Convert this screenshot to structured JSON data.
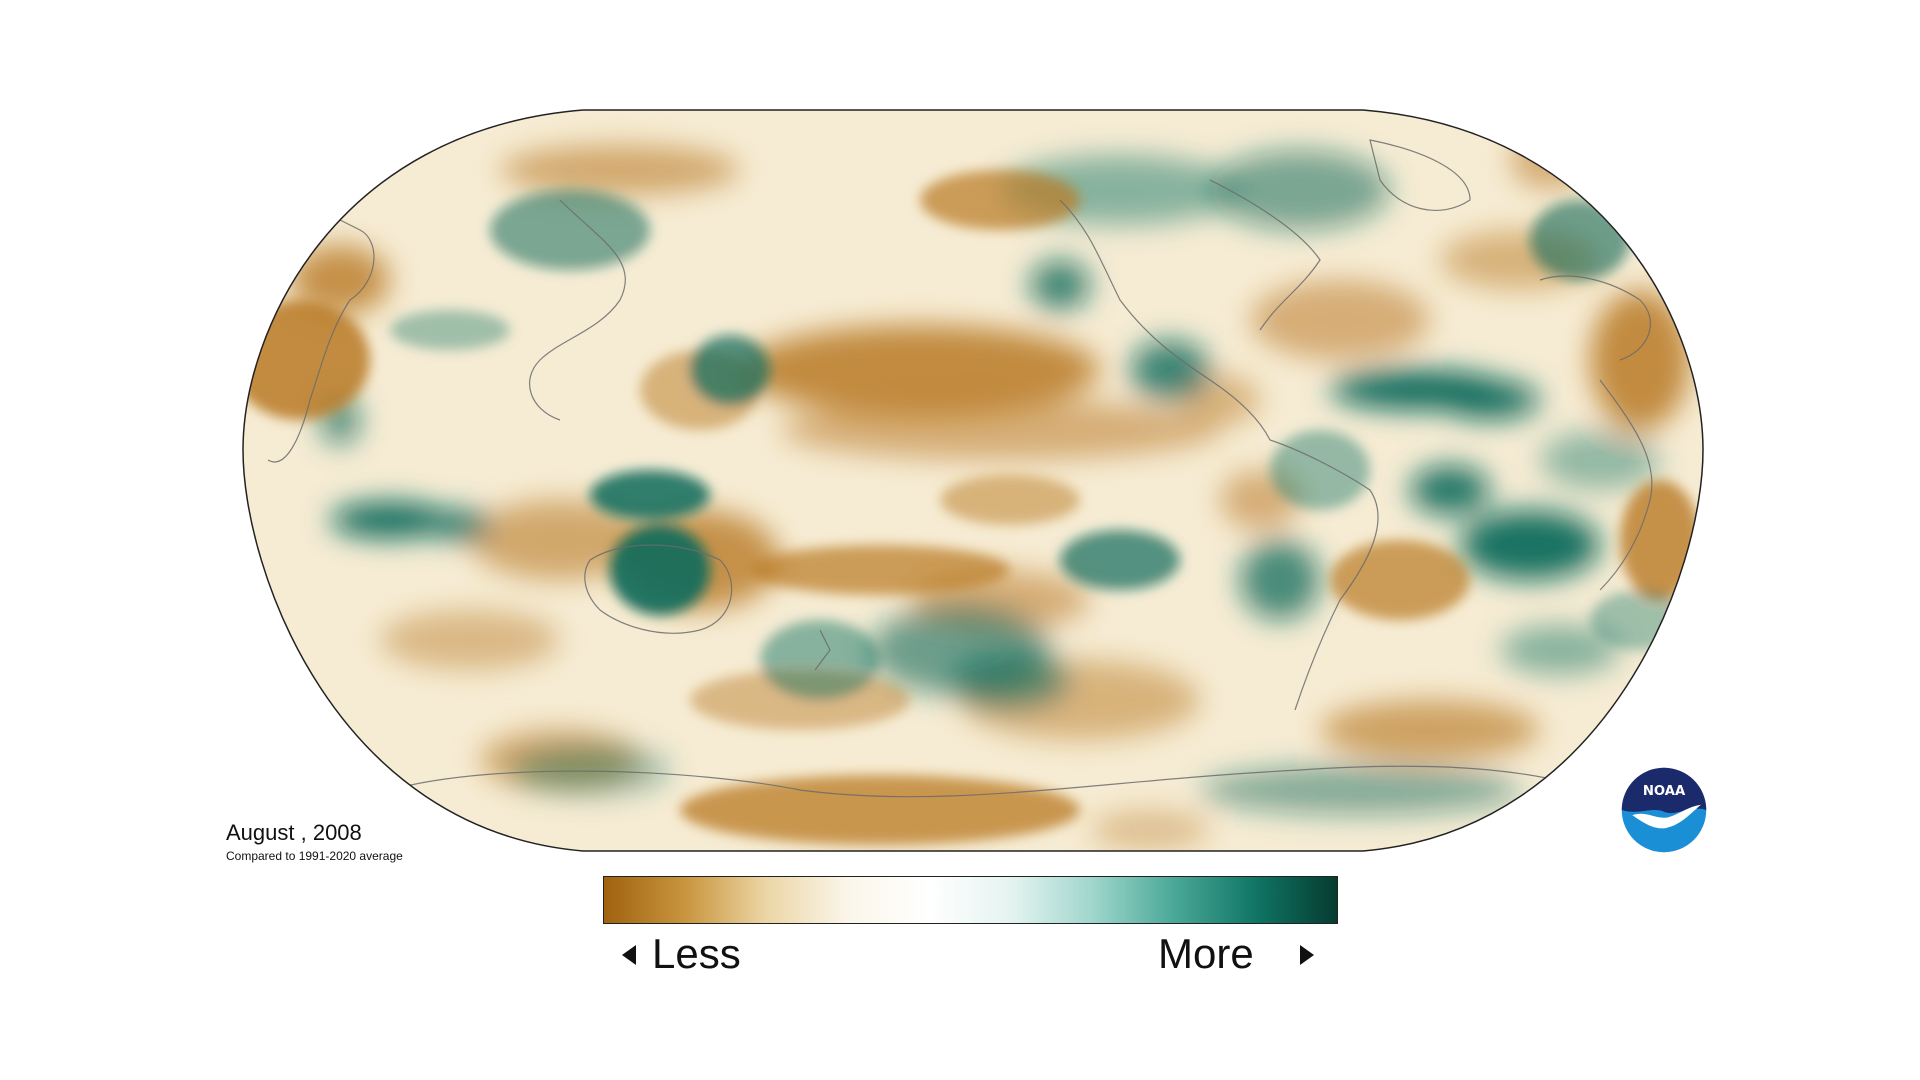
{
  "caption": {
    "title": "August , 2008",
    "subtitle": "Compared to 1991-2020 average"
  },
  "legend": {
    "less_label": "Less",
    "more_label": "More",
    "colors": [
      "#a0620f",
      "#c9953e",
      "#ecd6a6",
      "#fbf6ea",
      "#ffffff",
      "#e4f3f0",
      "#9fd6cc",
      "#4aa898",
      "#107565",
      "#053c30"
    ]
  },
  "logo": {
    "text": "NOAA",
    "colors": {
      "top": "#1b2a6b",
      "bottom": "#1a8fd6",
      "bird": "#ffffff"
    }
  },
  "map": {
    "type": "precipitation-anomaly",
    "projection": "robinson",
    "colors": {
      "dry": "#b97a24",
      "wet": "#0d6b5c",
      "coast": "#6b6b6b",
      "frame": "#222222"
    }
  }
}
